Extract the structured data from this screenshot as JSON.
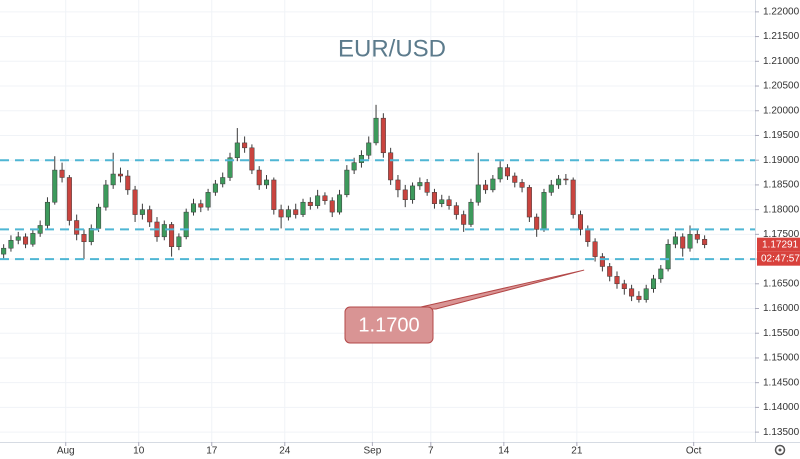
{
  "chart_data": {
    "type": "candlestick",
    "title": "EUR/USD",
    "up_color": "#3d9a5c",
    "down_color": "#c9443f",
    "x": [
      -4.25,
      -3.75,
      -3.25,
      -2.75,
      -2.25,
      -1.75,
      -1.25,
      -0.75,
      -0.25,
      0.25,
      0.75,
      1.25,
      1.75,
      2.25,
      2.75,
      3.25,
      3.75,
      4.25,
      4.75,
      5.25,
      5.75,
      6.25,
      6.75,
      7.25,
      7.75,
      8.25,
      8.75,
      9.25,
      9.75,
      10.25,
      10.75,
      11.25,
      11.75,
      12.25,
      12.75,
      13.25,
      13.75,
      14.25,
      14.75,
      15.25,
      15.75,
      16.25,
      16.75,
      17.25,
      17.75,
      18.25,
      18.75,
      19.25,
      19.75,
      20.25,
      20.75,
      21.25,
      21.75,
      22.25,
      22.75,
      23.25,
      23.75,
      24.25,
      24.75,
      25.25,
      25.75,
      26.25,
      26.75,
      27.25,
      27.75,
      28.25,
      28.75,
      29.25,
      29.75,
      30.25,
      30.75,
      31.25,
      31.75,
      32.25,
      32.75,
      33.25,
      33.75,
      34.25,
      34.75,
      35.25,
      35.75,
      36.25,
      36.75,
      37.25,
      37.75,
      38.25,
      38.75,
      39.25,
      39.75,
      40.25,
      40.75,
      41.25,
      41.75,
      42.25,
      42.75,
      43.25,
      43.75
    ],
    "open": [
      1.171,
      1.1722,
      1.1738,
      1.1745,
      1.173,
      1.1752,
      1.1768,
      1.1815,
      1.188,
      1.1865,
      1.1778,
      1.175,
      1.1735,
      1.1762,
      1.1805,
      1.185,
      1.1872,
      1.1868,
      1.184,
      1.179,
      1.18,
      1.1775,
      1.1745,
      1.177,
      1.1725,
      1.1745,
      1.1795,
      1.1812,
      1.1805,
      1.1835,
      1.1852,
      1.1865,
      1.1905,
      1.1935,
      1.1925,
      1.188,
      1.185,
      1.186,
      1.18,
      1.1785,
      1.18,
      1.179,
      1.1815,
      1.1808,
      1.1828,
      1.1818,
      1.1795,
      1.183,
      1.188,
      1.1895,
      1.191,
      1.1935,
      1.1985,
      1.1915,
      1.186,
      1.184,
      1.182,
      1.1848,
      1.1855,
      1.1835,
      1.1812,
      1.182,
      1.1808,
      1.179,
      1.177,
      1.1815,
      1.185,
      1.184,
      1.1862,
      1.1885,
      1.1868,
      1.1855,
      1.1845,
      1.1785,
      1.176,
      1.1835,
      1.185,
      1.1862,
      1.186,
      1.179,
      1.176,
      1.1735,
      1.1705,
      1.1685,
      1.1665,
      1.165,
      1.164,
      1.1625,
      1.1618,
      1.164,
      1.166,
      1.168,
      1.173,
      1.1745,
      1.1722,
      1.175,
      1.174
    ],
    "high": [
      1.173,
      1.1748,
      1.1755,
      1.1752,
      1.176,
      1.1778,
      1.1825,
      1.1908,
      1.1895,
      1.187,
      1.179,
      1.176,
      1.177,
      1.1812,
      1.186,
      1.1915,
      1.1885,
      1.188,
      1.1848,
      1.1812,
      1.1808,
      1.1785,
      1.1778,
      1.1775,
      1.1752,
      1.1802,
      1.1822,
      1.182,
      1.1842,
      1.186,
      1.1875,
      1.1915,
      1.1965,
      1.1948,
      1.1932,
      1.1888,
      1.187,
      1.1865,
      1.181,
      1.1808,
      1.1812,
      1.1822,
      1.1825,
      1.184,
      1.1835,
      1.1825,
      1.184,
      1.189,
      1.1905,
      1.192,
      1.1948,
      1.2012,
      1.1995,
      1.1925,
      1.187,
      1.185,
      1.1855,
      1.1865,
      1.1862,
      1.1842,
      1.183,
      1.1828,
      1.1815,
      1.1798,
      1.1822,
      1.1915,
      1.186,
      1.187,
      1.1898,
      1.1892,
      1.1875,
      1.1862,
      1.185,
      1.1792,
      1.1842,
      1.186,
      1.187,
      1.1872,
      1.1865,
      1.1798,
      1.1768,
      1.1742,
      1.1712,
      1.1692,
      1.1675,
      1.1658,
      1.1648,
      1.1635,
      1.1648,
      1.1668,
      1.1688,
      1.174,
      1.1755,
      1.1752,
      1.1768,
      1.176,
      1.1748
    ],
    "low": [
      1.17,
      1.1715,
      1.173,
      1.1722,
      1.1725,
      1.1745,
      1.1762,
      1.181,
      1.1855,
      1.1768,
      1.1738,
      1.17,
      1.1728,
      1.1755,
      1.1798,
      1.1842,
      1.1855,
      1.183,
      1.1775,
      1.178,
      1.1765,
      1.1735,
      1.1738,
      1.1705,
      1.1718,
      1.174,
      1.1788,
      1.1795,
      1.1798,
      1.1828,
      1.1845,
      1.1858,
      1.1898,
      1.1915,
      1.1872,
      1.184,
      1.1842,
      1.179,
      1.1762,
      1.1778,
      1.1782,
      1.1785,
      1.18,
      1.1802,
      1.181,
      1.1785,
      1.179,
      1.1825,
      1.1872,
      1.1885,
      1.1902,
      1.193,
      1.1905,
      1.185,
      1.1825,
      1.1805,
      1.1812,
      1.184,
      1.1828,
      1.1802,
      1.1805,
      1.18,
      1.178,
      1.1755,
      1.1765,
      1.1808,
      1.1832,
      1.1835,
      1.1855,
      1.186,
      1.1845,
      1.1835,
      1.1775,
      1.1745,
      1.1755,
      1.1828,
      1.1842,
      1.185,
      1.1782,
      1.1748,
      1.1725,
      1.1695,
      1.1675,
      1.1655,
      1.164,
      1.1628,
      1.1615,
      1.1612,
      1.1612,
      1.1632,
      1.1652,
      1.1675,
      1.1722,
      1.1705,
      1.1715,
      1.1732,
      1.1722
    ],
    "close": [
      1.1722,
      1.1738,
      1.1745,
      1.173,
      1.1752,
      1.1768,
      1.1815,
      1.188,
      1.1865,
      1.1778,
      1.175,
      1.1735,
      1.1762,
      1.1805,
      1.185,
      1.1872,
      1.1868,
      1.184,
      1.179,
      1.18,
      1.1775,
      1.1745,
      1.177,
      1.1725,
      1.1745,
      1.1795,
      1.1812,
      1.1805,
      1.1835,
      1.1852,
      1.1865,
      1.1905,
      1.1935,
      1.1925,
      1.188,
      1.185,
      1.186,
      1.18,
      1.1785,
      1.18,
      1.179,
      1.1815,
      1.1808,
      1.1828,
      1.1818,
      1.1795,
      1.183,
      1.188,
      1.1895,
      1.191,
      1.1935,
      1.1985,
      1.1915,
      1.186,
      1.184,
      1.182,
      1.1848,
      1.1855,
      1.1835,
      1.1812,
      1.182,
      1.1808,
      1.179,
      1.177,
      1.1815,
      1.185,
      1.184,
      1.1862,
      1.1885,
      1.1868,
      1.1855,
      1.1845,
      1.1785,
      1.176,
      1.1835,
      1.185,
      1.1862,
      1.186,
      1.179,
      1.176,
      1.1735,
      1.1705,
      1.1685,
      1.1665,
      1.165,
      1.164,
      1.1625,
      1.1618,
      1.164,
      1.166,
      1.168,
      1.173,
      1.1745,
      1.1722,
      1.175,
      1.174,
      1.1729
    ],
    "xlim": [
      -4.5,
      47.2
    ],
    "xticks": [
      {
        "value": 0,
        "label": "Aug"
      },
      {
        "value": 5,
        "label": "10"
      },
      {
        "value": 10,
        "label": "17"
      },
      {
        "value": 15,
        "label": "24"
      },
      {
        "value": 21,
        "label": "Sep"
      },
      {
        "value": 25,
        "label": "7"
      },
      {
        "value": 30,
        "label": "14"
      },
      {
        "value": 35,
        "label": "21"
      },
      {
        "value": 43,
        "label": "Oct"
      }
    ],
    "ylim": [
      1.133,
      1.2224
    ],
    "yticks": [
      {
        "value": 1.135,
        "label": "1.13500"
      },
      {
        "value": 1.14,
        "label": "1.14000"
      },
      {
        "value": 1.145,
        "label": "1.14500"
      },
      {
        "value": 1.15,
        "label": "1.15000"
      },
      {
        "value": 1.155,
        "label": "1.15500"
      },
      {
        "value": 1.16,
        "label": "1.16000"
      },
      {
        "value": 1.165,
        "label": "1.16500"
      },
      {
        "value": 1.17,
        "label": "1.17000"
      },
      {
        "value": 1.175,
        "label": "1.17500"
      },
      {
        "value": 1.18,
        "label": "1.18000"
      },
      {
        "value": 1.185,
        "label": "1.18500"
      },
      {
        "value": 1.19,
        "label": "1.19000"
      },
      {
        "value": 1.195,
        "label": "1.19500"
      },
      {
        "value": 1.2,
        "label": "1.20000"
      },
      {
        "value": 1.205,
        "label": "1.20500"
      },
      {
        "value": 1.21,
        "label": "1.21000"
      },
      {
        "value": 1.215,
        "label": "1.21500"
      },
      {
        "value": 1.22,
        "label": "1.22000"
      }
    ],
    "grid": true,
    "hlines": [
      {
        "value": 1.19,
        "color": "#4fb6d4"
      },
      {
        "value": 1.176,
        "color": "#4fb6d4"
      },
      {
        "value": 1.17,
        "color": "#4fb6d4"
      }
    ],
    "annotation": {
      "value": 1.17,
      "label": "1.1700"
    },
    "last_price": {
      "value": 1.17291,
      "label": "1.17291"
    },
    "countdown": "02:47:57"
  }
}
